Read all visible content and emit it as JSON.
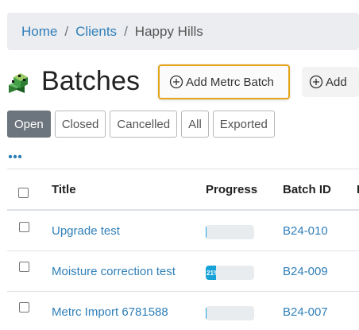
{
  "breadcrumb": {
    "home": "Home",
    "clients": "Clients",
    "current": "Happy Hills",
    "separator": "/"
  },
  "header": {
    "title": "Batches",
    "add_metrc_label": "Add Metrc Batch",
    "add_label": "Add",
    "accent_color": "#e3a51c"
  },
  "filters": [
    {
      "label": "Open",
      "active": true
    },
    {
      "label": "Closed"
    },
    {
      "label": "Cancelled"
    },
    {
      "label": "All"
    },
    {
      "label": "Exported"
    }
  ],
  "table": {
    "columns": [
      "Title",
      "Progress",
      "Batch ID",
      "I"
    ],
    "rows": [
      {
        "title": "Upgrade test",
        "progress": 0,
        "progress_label": "",
        "batch_id": "B24-010"
      },
      {
        "title": "Moisture correction test",
        "progress": 0.21,
        "progress_label": "21%",
        "batch_id": "B24-009"
      },
      {
        "title": "Metrc Import 6781588",
        "progress": 0,
        "progress_label": "",
        "batch_id": "B24-007"
      }
    ]
  }
}
